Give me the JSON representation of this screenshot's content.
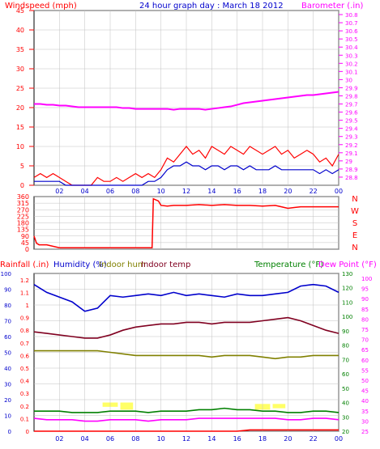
{
  "colors": {
    "wind": "#ff0000",
    "gust_avg": "#0000cc",
    "baro": "#ff00ff",
    "dir": "#ff0000",
    "rain": "#ff0000",
    "humidity": "#0000cc",
    "indoor_hum": "#808000",
    "indoor_temp": "#800020",
    "temperature": "#008000",
    "dewpoint": "#ff00ff",
    "solar": "#ffff66",
    "grid": "#c0c0c0"
  },
  "chart_data": [
    {
      "type": "line",
      "title": "24 hour graph day : March 18 2012",
      "left_label": "Windspeed (mph)",
      "right_label": "Barometer (.in)",
      "x_ticks": [
        "02",
        "04",
        "06",
        "08",
        "10",
        "12",
        "14",
        "16",
        "18",
        "20",
        "22",
        "00"
      ],
      "y_left_ticks": [
        "45",
        "40",
        "35",
        "30",
        "25",
        "20",
        "15",
        "10",
        "5",
        "0"
      ],
      "y_right_ticks": [
        "30.8",
        "30.7",
        "30.6",
        "30.5",
        "30.4",
        "30.3",
        "30.2",
        "30.1",
        "30",
        "29.9",
        "29.8",
        "29.7",
        "29.6",
        "29.5",
        "29.4",
        "29.3",
        "29.2",
        "29.1",
        "29",
        "28.9",
        "28.8"
      ],
      "ylim_left": [
        0,
        45
      ],
      "ylim_right": [
        28.7,
        30.85
      ],
      "x_hours": [
        0,
        0.5,
        1,
        1.5,
        2,
        2.5,
        3,
        3.5,
        4,
        4.5,
        5,
        5.5,
        6,
        6.5,
        7,
        7.5,
        8,
        8.5,
        9,
        9.5,
        10,
        10.5,
        11,
        11.5,
        12,
        12.5,
        13,
        13.5,
        14,
        14.5,
        15,
        15.5,
        16,
        16.5,
        17,
        17.5,
        18,
        18.5,
        19,
        19.5,
        20,
        20.5,
        21,
        21.5,
        22,
        22.5,
        23,
        23.5,
        24
      ],
      "series": [
        {
          "name": "Windspeed (mph)",
          "axis": "left",
          "values": [
            2,
            3,
            2,
            3,
            2,
            1,
            0,
            0,
            0,
            0,
            2,
            1,
            1,
            2,
            1,
            2,
            3,
            2,
            3,
            2,
            4,
            7,
            6,
            8,
            10,
            8,
            9,
            7,
            10,
            9,
            8,
            10,
            9,
            8,
            10,
            9,
            8,
            9,
            10,
            8,
            9,
            7,
            8,
            9,
            8,
            6,
            7,
            5,
            8
          ]
        },
        {
          "name": "Average wind",
          "axis": "left",
          "values": [
            1,
            1,
            1,
            1,
            1,
            0,
            0,
            0,
            0,
            0,
            0,
            0,
            0,
            0,
            0,
            0,
            0,
            0,
            1,
            1,
            2,
            4,
            5,
            5,
            6,
            5,
            5,
            4,
            5,
            5,
            4,
            5,
            5,
            4,
            5,
            4,
            4,
            4,
            5,
            4,
            4,
            4,
            4,
            4,
            4,
            3,
            4,
            3,
            4
          ]
        },
        {
          "name": "Barometer (.in)",
          "axis": "right",
          "values": [
            29.7,
            29.7,
            29.69,
            29.69,
            29.68,
            29.68,
            29.67,
            29.66,
            29.66,
            29.66,
            29.66,
            29.66,
            29.66,
            29.66,
            29.65,
            29.65,
            29.64,
            29.64,
            29.64,
            29.64,
            29.64,
            29.64,
            29.63,
            29.64,
            29.64,
            29.64,
            29.64,
            29.63,
            29.64,
            29.65,
            29.66,
            29.67,
            29.69,
            29.71,
            29.72,
            29.73,
            29.74,
            29.75,
            29.76,
            29.77,
            29.78,
            29.79,
            29.8,
            29.81,
            29.81,
            29.82,
            29.83,
            29.84,
            29.85
          ]
        }
      ]
    },
    {
      "type": "line",
      "title": "",
      "y_ticks": [
        "360",
        "315",
        "270",
        "225",
        "180",
        "135",
        "90",
        "45",
        "0"
      ],
      "ylim": [
        0,
        360
      ],
      "compass": [
        "N",
        "W",
        "S",
        "E",
        "N"
      ],
      "x_hours": [
        0,
        0.2,
        0.4,
        1,
        2,
        3,
        4,
        5,
        6,
        7,
        8,
        9,
        9.3,
        9.4,
        9.8,
        10,
        10.5,
        11,
        12,
        13,
        14,
        15,
        16,
        17,
        18,
        19,
        20,
        20.5,
        21,
        22,
        23,
        24
      ],
      "series": [
        {
          "name": "Wind direction",
          "values": [
            90,
            40,
            30,
            30,
            10,
            10,
            10,
            10,
            10,
            10,
            10,
            10,
            10,
            345,
            330,
            300,
            295,
            300,
            300,
            305,
            300,
            305,
            300,
            300,
            295,
            300,
            280,
            285,
            290,
            290,
            290,
            290
          ]
        }
      ]
    },
    {
      "type": "line",
      "title": "",
      "labels": {
        "rain": "Rainfall (.in)",
        "humidity": "Humidity (%)",
        "indoor_hum": "Indoor hum",
        "indoor_temp": "Indoor temp",
        "temperature": "Temperature (°F)",
        "dewpoint": "Dew Point (°F)"
      },
      "y_humidity_ticks": [
        "100",
        "90",
        "80",
        "70",
        "60",
        "50",
        "40",
        "30",
        "20",
        "10",
        "0"
      ],
      "y_rain_ticks": [
        "1.2",
        "1.1",
        "1",
        "0.9",
        "0.8",
        "0.7",
        "0.6",
        "0.5",
        "0.4",
        "0.3",
        "0.2",
        "0.1",
        "0"
      ],
      "y_temp_ticks": [
        "130",
        "120",
        "110",
        "100",
        "90",
        "80",
        "70",
        "60",
        "50",
        "40",
        "30",
        "20"
      ],
      "y_dew_ticks": [
        "100",
        "95",
        "90",
        "85",
        "80",
        "75",
        "70",
        "65",
        "60",
        "55",
        "50",
        "45",
        "40",
        "35",
        "30",
        "25"
      ],
      "ylim_humidity": [
        0,
        100
      ],
      "ylim_temp": [
        20,
        130
      ],
      "x_hours": [
        0,
        1,
        2,
        3,
        4,
        5,
        6,
        7,
        8,
        9,
        10,
        11,
        12,
        13,
        14,
        15,
        16,
        17,
        18,
        19,
        20,
        21,
        22,
        23,
        24
      ],
      "series": [
        {
          "name": "Humidity (%)",
          "axis": "humidity",
          "values": [
            93,
            88,
            85,
            82,
            76,
            78,
            86,
            85,
            86,
            87,
            86,
            88,
            86,
            87,
            86,
            85,
            87,
            86,
            86,
            87,
            88,
            92,
            93,
            92,
            88
          ]
        },
        {
          "name": "Indoor hum",
          "axis": "humidity",
          "values": [
            51,
            51,
            51,
            51,
            51,
            51,
            50,
            49,
            48,
            48,
            48,
            48,
            48,
            48,
            47,
            48,
            48,
            48,
            47,
            46,
            47,
            47,
            48,
            48,
            48
          ]
        },
        {
          "name": "Indoor temp",
          "axis": "humidity",
          "values": [
            63,
            62,
            61,
            60,
            59,
            59,
            61,
            64,
            66,
            67,
            68,
            68,
            69,
            69,
            68,
            69,
            69,
            69,
            70,
            71,
            72,
            70,
            67,
            64,
            62
          ]
        },
        {
          "name": "Temperature (°F)",
          "axis": "temp",
          "values": [
            34,
            34,
            34,
            33,
            33,
            33,
            34,
            34,
            34,
            33,
            34,
            34,
            34,
            35,
            35,
            36,
            35,
            35,
            34,
            34,
            33,
            33,
            34,
            34,
            33
          ]
        },
        {
          "name": "Dew Point (°F)",
          "axis": "temp",
          "values": [
            29,
            28,
            28,
            28,
            27,
            27,
            28,
            28,
            28,
            27,
            28,
            28,
            28,
            29,
            29,
            29,
            29,
            29,
            29,
            29,
            28,
            28,
            29,
            29,
            28
          ]
        },
        {
          "name": "Rainfall (.in)",
          "axis": "rain",
          "values": [
            0,
            0,
            0,
            0,
            0,
            0,
            0,
            0,
            0,
            0,
            0,
            0,
            0,
            0,
            0,
            0,
            0,
            0.01,
            0.01,
            0.01,
            0.01,
            0.01,
            0.01,
            0.01,
            0.01
          ]
        }
      ],
      "solar_bands": [
        [
          5.4,
          6.6,
          40,
          37
        ],
        [
          6.8,
          7.8,
          40,
          35
        ],
        [
          17.4,
          18.6,
          39,
          35
        ],
        [
          18.8,
          19.8,
          39,
          36
        ]
      ]
    }
  ]
}
